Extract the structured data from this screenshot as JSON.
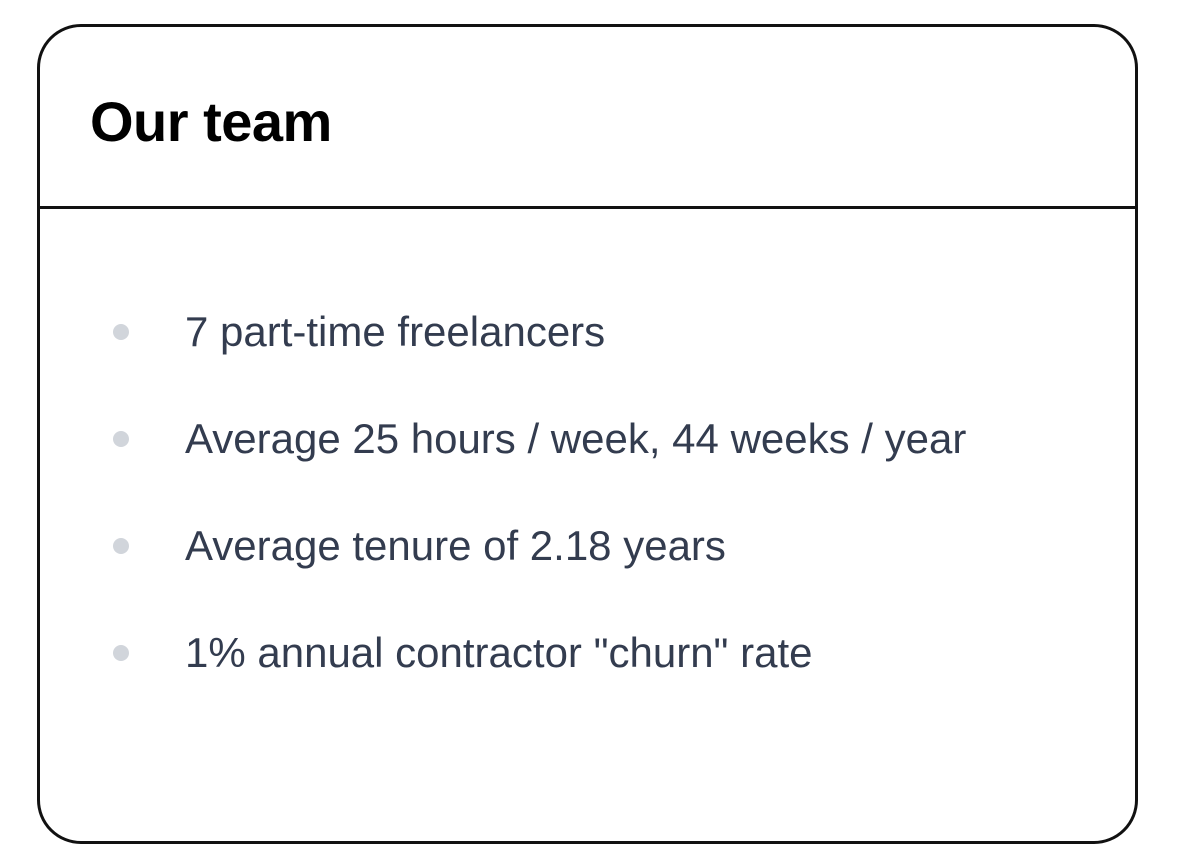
{
  "card": {
    "title": "Our team",
    "items": [
      "7 part-time freelancers",
      "Average 25 hours / week, 44 weeks / year",
      "Average tenure of 2.18 years",
      "1% annual contractor \"churn\" rate"
    ]
  }
}
